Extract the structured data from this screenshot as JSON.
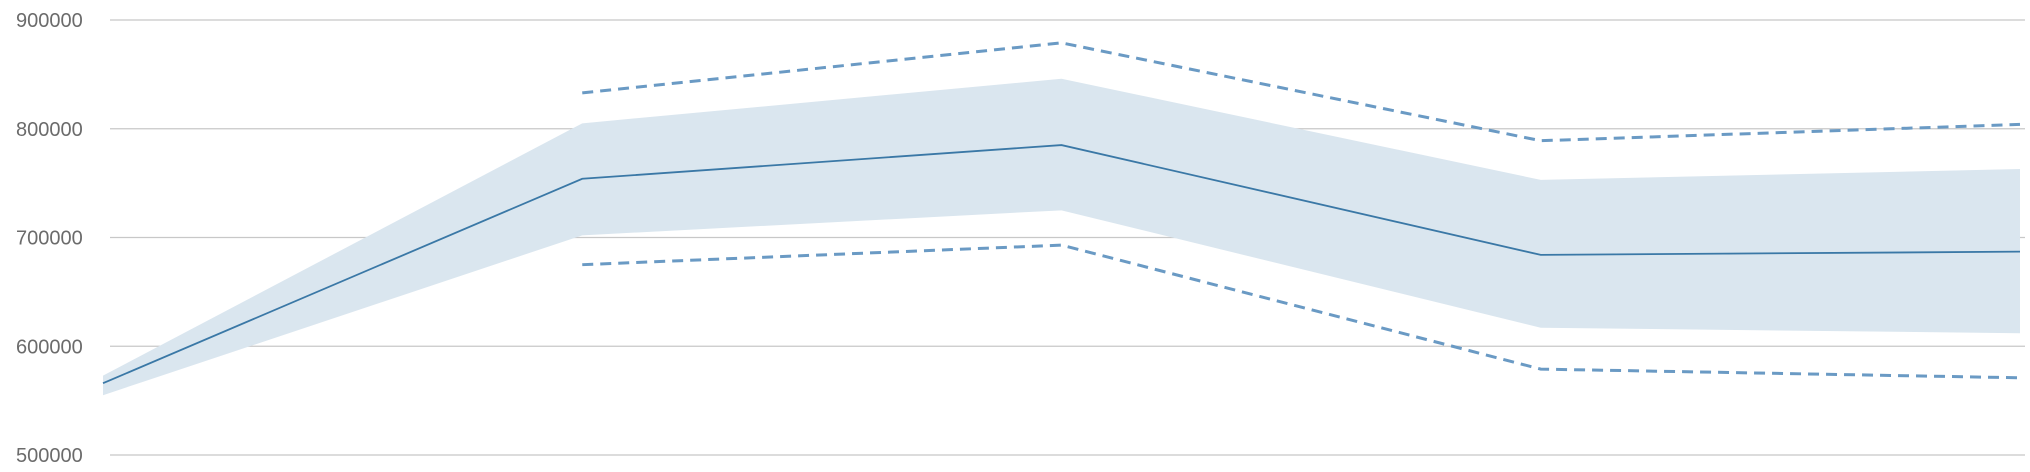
{
  "chart_data": {
    "type": "line",
    "title": "",
    "xlabel": "",
    "ylabel": "",
    "x": [
      1,
      2,
      3,
      4,
      5
    ],
    "ylim": [
      500000,
      900000
    ],
    "yticks": [
      "900000",
      "800000",
      "700000",
      "600000",
      "500000"
    ],
    "yticks_values": [
      900000,
      800000,
      700000,
      600000,
      500000
    ],
    "grid": true,
    "legend": "none",
    "series": [
      {
        "role": "mean",
        "style": "solid",
        "values": [
          566000,
          754000,
          785000,
          684000,
          687000
        ]
      },
      {
        "role": "band-upper",
        "style": "shaded",
        "values": [
          573000,
          805000,
          846000,
          753000,
          763000
        ]
      },
      {
        "role": "band-lower",
        "style": "shaded",
        "values": [
          555000,
          702000,
          725000,
          617000,
          612000
        ]
      },
      {
        "role": "upper-bound",
        "style": "dashed",
        "values": [
          null,
          833000,
          879000,
          789000,
          804000
        ]
      },
      {
        "role": "lower-bound",
        "style": "dashed",
        "values": [
          null,
          675000,
          693000,
          579000,
          571000
        ]
      }
    ],
    "colors": {
      "line": "#3a78a6",
      "dashed": "#6a9ac4",
      "band": "#dae6ef",
      "grid": "#c8c8c8",
      "tick": "#6b6b6b"
    }
  }
}
